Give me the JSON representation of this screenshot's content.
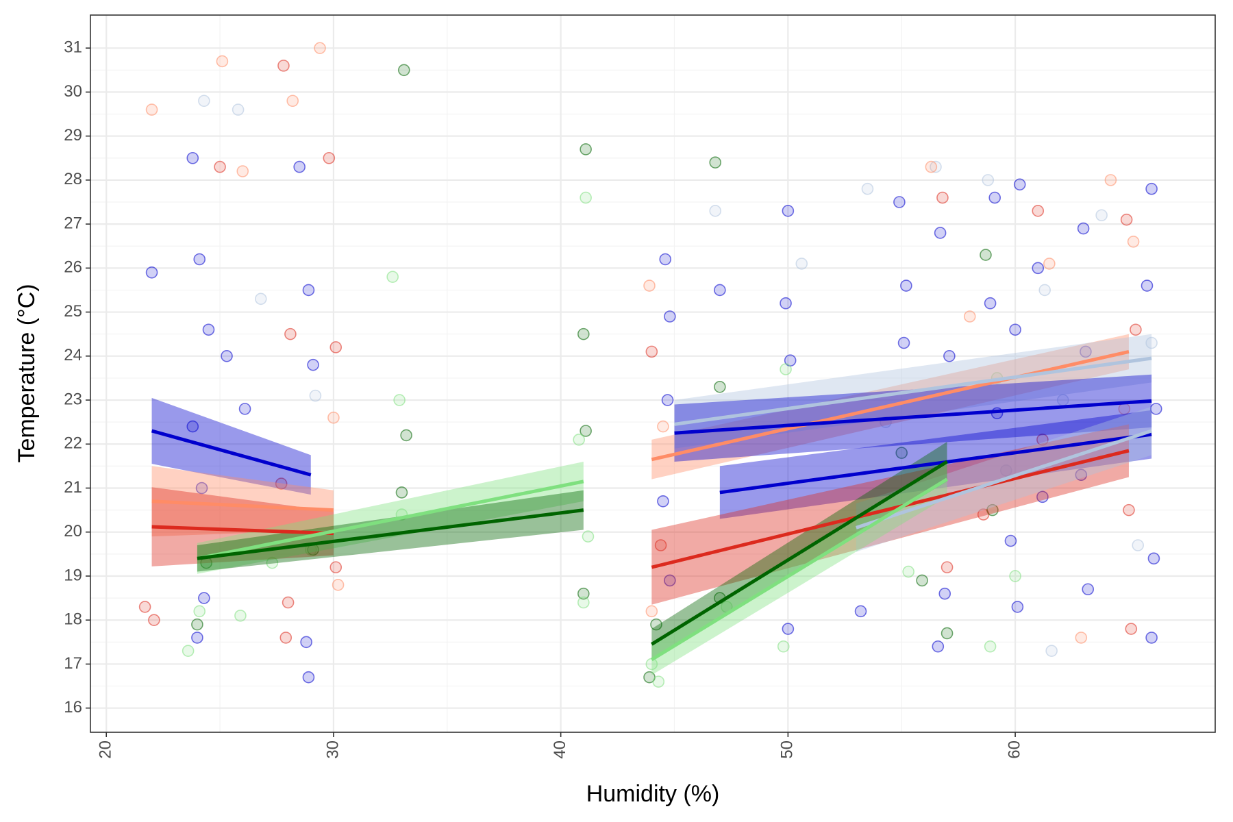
{
  "chart_data": {
    "type": "scatter",
    "title": "",
    "xlabel": "Humidity (%)",
    "ylabel": "Temperature (°C)",
    "xlim": [
      19.3,
      68.8
    ],
    "ylim": [
      15.45,
      31.75
    ],
    "x_ticks": [
      20,
      30,
      40,
      50,
      60
    ],
    "y_ticks": [
      16,
      17,
      18,
      19,
      20,
      21,
      22,
      23,
      24,
      25,
      26,
      27,
      28,
      29,
      30,
      31
    ],
    "grid": true,
    "legend": "none",
    "colors": {
      "dark_blue": "#0000CD",
      "light_blue": "#B0C4DE",
      "red": "#DC2A1E",
      "salmon": "#FF8C66",
      "dark_green": "#006400",
      "light_green": "#7FE07F"
    },
    "points": {
      "dark_blue": [
        [
          22,
          25.9
        ],
        [
          23.8,
          28.5
        ],
        [
          24.1,
          26.2
        ],
        [
          24.5,
          24.6
        ],
        [
          23.8,
          22.4
        ],
        [
          24.2,
          21.0
        ],
        [
          24.0,
          17.6
        ],
        [
          24.3,
          18.5
        ],
        [
          25.3,
          24.0
        ],
        [
          26.1,
          22.8
        ],
        [
          28.5,
          28.3
        ],
        [
          28.9,
          25.5
        ],
        [
          29.1,
          23.8
        ],
        [
          28.8,
          17.5
        ],
        [
          28.9,
          16.7
        ],
        [
          44.6,
          26.2
        ],
        [
          44.8,
          24.9
        ],
        [
          44.7,
          23.0
        ],
        [
          44.5,
          20.7
        ],
        [
          44.8,
          18.9
        ],
        [
          47.0,
          25.5
        ],
        [
          50.0,
          27.3
        ],
        [
          49.9,
          25.2
        ],
        [
          50.1,
          23.9
        ],
        [
          50.0,
          17.8
        ],
        [
          53.2,
          18.2
        ],
        [
          54.9,
          27.5
        ],
        [
          55.2,
          25.6
        ],
        [
          55.1,
          24.3
        ],
        [
          56.7,
          26.8
        ],
        [
          57.1,
          24.0
        ],
        [
          56.9,
          18.6
        ],
        [
          56.6,
          17.4
        ],
        [
          59.1,
          27.6
        ],
        [
          58.9,
          25.2
        ],
        [
          59.2,
          22.7
        ],
        [
          60.2,
          27.9
        ],
        [
          60.0,
          24.6
        ],
        [
          59.8,
          19.8
        ],
        [
          60.1,
          18.3
        ],
        [
          61.0,
          26.0
        ],
        [
          61.2,
          20.8
        ],
        [
          63.0,
          26.9
        ],
        [
          63.1,
          24.1
        ],
        [
          62.9,
          21.3
        ],
        [
          63.2,
          18.7
        ],
        [
          66.0,
          27.8
        ],
        [
          65.8,
          25.6
        ],
        [
          66.2,
          22.8
        ],
        [
          66.1,
          19.4
        ],
        [
          66.0,
          17.6
        ]
      ],
      "light_blue": [
        [
          24.3,
          29.8
        ],
        [
          25.8,
          29.6
        ],
        [
          26.8,
          25.3
        ],
        [
          29.2,
          23.1
        ],
        [
          46.8,
          27.3
        ],
        [
          50.6,
          26.1
        ],
        [
          53.5,
          27.8
        ],
        [
          54.3,
          22.5
        ],
        [
          56.5,
          28.3
        ],
        [
          58.8,
          28.0
        ],
        [
          59.6,
          21.4
        ],
        [
          61.3,
          25.5
        ],
        [
          62.1,
          23.0
        ],
        [
          63.8,
          27.2
        ],
        [
          66.0,
          24.3
        ],
        [
          65.4,
          19.7
        ],
        [
          61.6,
          17.3
        ]
      ],
      "red": [
        [
          21.7,
          18.3
        ],
        [
          22.1,
          18.0
        ],
        [
          25.0,
          28.3
        ],
        [
          27.8,
          30.6
        ],
        [
          28.1,
          24.5
        ],
        [
          27.7,
          21.1
        ],
        [
          28.0,
          18.4
        ],
        [
          27.9,
          17.6
        ],
        [
          29.8,
          28.5
        ],
        [
          30.1,
          24.2
        ],
        [
          30.1,
          19.2
        ],
        [
          44.0,
          24.1
        ],
        [
          44.4,
          19.7
        ],
        [
          56.8,
          27.6
        ],
        [
          57.0,
          19.2
        ],
        [
          58.6,
          20.4
        ],
        [
          61.0,
          27.3
        ],
        [
          61.2,
          22.1
        ],
        [
          64.9,
          27.1
        ],
        [
          65.3,
          24.6
        ],
        [
          65.0,
          20.5
        ],
        [
          65.1,
          17.8
        ]
      ],
      "salmon": [
        [
          22.0,
          29.6
        ],
        [
          25.1,
          30.7
        ],
        [
          26.0,
          28.2
        ],
        [
          28.2,
          29.8
        ],
        [
          29.4,
          31.0
        ],
        [
          30.0,
          22.6
        ],
        [
          30.2,
          18.8
        ],
        [
          43.9,
          25.6
        ],
        [
          44.5,
          22.4
        ],
        [
          44.0,
          18.2
        ],
        [
          56.3,
          28.3
        ],
        [
          58.0,
          24.9
        ],
        [
          61.5,
          26.1
        ],
        [
          64.2,
          28.0
        ],
        [
          65.2,
          26.6
        ],
        [
          64.8,
          22.8
        ],
        [
          62.9,
          17.6
        ]
      ],
      "dark_green": [
        [
          24.0,
          17.9
        ],
        [
          24.4,
          19.3
        ],
        [
          29.1,
          19.6
        ],
        [
          33.1,
          30.5
        ],
        [
          33.2,
          22.2
        ],
        [
          33.0,
          20.9
        ],
        [
          41.1,
          28.7
        ],
        [
          41.0,
          24.5
        ],
        [
          41.1,
          22.3
        ],
        [
          41.0,
          18.6
        ],
        [
          43.9,
          16.7
        ],
        [
          44.2,
          17.9
        ],
        [
          46.8,
          28.4
        ],
        [
          47.0,
          23.3
        ],
        [
          47.0,
          18.5
        ],
        [
          55.0,
          21.8
        ],
        [
          55.9,
          18.9
        ],
        [
          57.0,
          17.7
        ],
        [
          58.7,
          26.3
        ],
        [
          59.0,
          20.5
        ]
      ],
      "light_green": [
        [
          23.6,
          17.3
        ],
        [
          24.1,
          18.2
        ],
        [
          25.9,
          18.1
        ],
        [
          27.3,
          19.3
        ],
        [
          29.0,
          19.6
        ],
        [
          32.6,
          25.8
        ],
        [
          32.9,
          23.0
        ],
        [
          33.0,
          20.4
        ],
        [
          41.1,
          27.6
        ],
        [
          40.8,
          22.1
        ],
        [
          41.0,
          18.4
        ],
        [
          41.2,
          19.9
        ],
        [
          44.0,
          17.0
        ],
        [
          44.3,
          16.6
        ],
        [
          47.3,
          18.3
        ],
        [
          49.9,
          23.7
        ],
        [
          49.8,
          17.4
        ],
        [
          55.3,
          19.1
        ],
        [
          58.9,
          17.4
        ],
        [
          59.2,
          23.5
        ],
        [
          60.0,
          19.0
        ]
      ]
    },
    "trend_lines": [
      {
        "color": "dark_blue",
        "x": [
          22,
          29
        ],
        "y": [
          22.3,
          21.3
        ],
        "ci": [
          0.75,
          0.45
        ]
      },
      {
        "color": "salmon",
        "x": [
          22,
          30
        ],
        "y": [
          20.7,
          20.5
        ],
        "ci": [
          0.8,
          0.45
        ]
      },
      {
        "color": "red",
        "x": [
          22,
          30
        ],
        "y": [
          20.12,
          19.97
        ],
        "ci": [
          0.9,
          0.5
        ]
      },
      {
        "color": "light_green",
        "x": [
          24,
          41
        ],
        "y": [
          19.4,
          21.15
        ],
        "ci": [
          0.35,
          0.45
        ]
      },
      {
        "color": "dark_green",
        "x": [
          24,
          41
        ],
        "y": [
          19.4,
          20.5
        ],
        "ci": [
          0.3,
          0.45
        ]
      },
      {
        "color": "salmon",
        "x": [
          44,
          65
        ],
        "y": [
          21.65,
          24.1
        ],
        "ci": [
          0.45,
          0.4
        ]
      },
      {
        "color": "light_blue",
        "x": [
          45,
          66
        ],
        "y": [
          22.45,
          23.95
        ],
        "ci": [
          0.55,
          0.55
        ]
      },
      {
        "color": "dark_blue",
        "x": [
          45,
          66
        ],
        "y": [
          22.25,
          22.98
        ],
        "ci": [
          0.65,
          0.6
        ]
      },
      {
        "color": "dark_blue",
        "x": [
          47,
          66
        ],
        "y": [
          20.9,
          22.22
        ],
        "ci": [
          0.6,
          0.55
        ]
      },
      {
        "color": "red",
        "x": [
          44,
          65
        ],
        "y": [
          19.2,
          21.85
        ],
        "ci": [
          0.85,
          0.6
        ]
      },
      {
        "color": "light_blue",
        "x": [
          53,
          66
        ],
        "y": [
          20.1,
          22.3
        ],
        "ci": [
          0.55,
          0.55
        ]
      },
      {
        "color": "dark_green",
        "x": [
          44,
          57
        ],
        "y": [
          17.45,
          21.6
        ],
        "ci": [
          0.35,
          0.45
        ]
      },
      {
        "color": "light_green",
        "x": [
          44,
          57
        ],
        "y": [
          17.1,
          21.2
        ],
        "ci": [
          0.35,
          0.4
        ]
      }
    ]
  }
}
